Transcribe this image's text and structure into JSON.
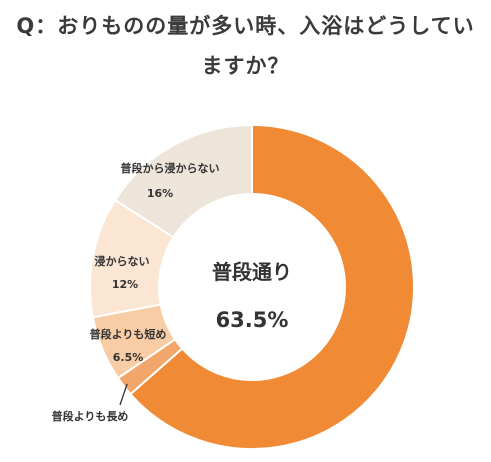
{
  "title": "Q：おりものの量が多い時、入浴はどうしていますか？",
  "chart_data": {
    "type": "pie",
    "variant": "donut",
    "title": "Q：おりものの量が多い時、入浴はどうしていますか？",
    "unit": "%",
    "slices": [
      {
        "label": "普段通り",
        "value": 63.5,
        "value_label": "63.5%",
        "color": "#F08A35"
      },
      {
        "label": "普段よりも長め",
        "value": 2.0,
        "value_label": "",
        "color": "#F3A66A"
      },
      {
        "label": "普段よりも短め",
        "value": 6.5,
        "value_label": "6.5%",
        "color": "#F8CDA5"
      },
      {
        "label": "浸からない",
        "value": 12,
        "value_label": "12%",
        "color": "#FBE6D3"
      },
      {
        "label": "普段から浸からない",
        "value": 16,
        "value_label": "16%",
        "color": "#EDE4DA"
      }
    ],
    "center_label": "普段通り",
    "center_value": "63.5%",
    "start_angle": "12 o'clock",
    "direction": "clockwise",
    "legend": "none"
  }
}
